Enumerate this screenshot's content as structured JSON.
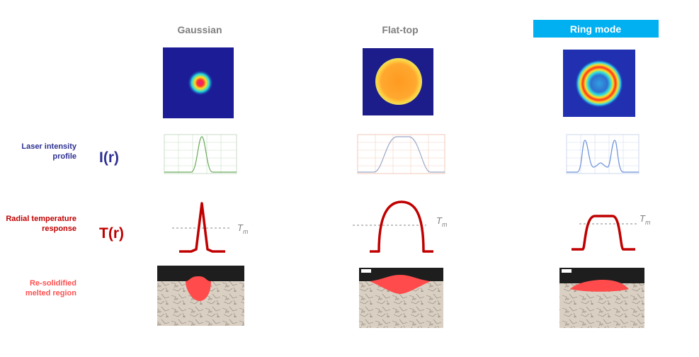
{
  "columns": [
    {
      "title": "Gaussian",
      "tm": {
        "symbol": "T",
        "subscript": "m"
      }
    },
    {
      "title": "Flat-top",
      "tm": {
        "symbol": "T",
        "subscript": "m"
      }
    },
    {
      "title": "Ring mode",
      "tm": {
        "symbol": "T",
        "subscript": "m"
      }
    }
  ],
  "rows": [
    {
      "label": "Laser intensity profile",
      "symbol": "I(r)"
    },
    {
      "label": "Radial temperature response",
      "symbol": "T(r)"
    },
    {
      "label": "Re-solidified melted region"
    }
  ]
}
